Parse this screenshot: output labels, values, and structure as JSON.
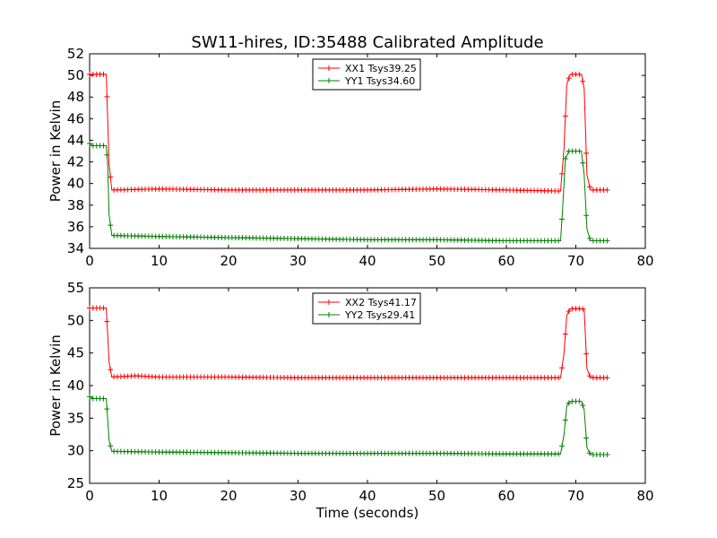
{
  "title": "SW11-hires, ID:35488 Calibrated Amplitude",
  "xlabel": "Time (seconds)",
  "chart_data": [
    {
      "type": "line",
      "ylabel": "Power in Kelvin",
      "xlim": [
        0,
        80
      ],
      "ylim": [
        34,
        52
      ],
      "xticks": [
        0,
        10,
        20,
        30,
        40,
        50,
        60,
        70,
        80
      ],
      "yticks": [
        34,
        36,
        38,
        40,
        42,
        44,
        46,
        48,
        50,
        52
      ],
      "legend_position": "top-center",
      "series": [
        {
          "name": "XX1 Tsys39.25",
          "color": "#ff0000",
          "points": [
            [
              0,
              50.1
            ],
            [
              2.4,
              50.1
            ],
            [
              2.8,
              41.8
            ],
            [
              3.2,
              39.4
            ],
            [
              10,
              39.5
            ],
            [
              20,
              39.4
            ],
            [
              30,
              39.4
            ],
            [
              40,
              39.4
            ],
            [
              50,
              39.5
            ],
            [
              60,
              39.4
            ],
            [
              67.8,
              39.3
            ],
            [
              68.3,
              43.3
            ],
            [
              68.7,
              49.2
            ],
            [
              69.2,
              50.1
            ],
            [
              70.8,
              50.1
            ],
            [
              71.2,
              48.8
            ],
            [
              71.6,
              40.8
            ],
            [
              72.1,
              39.4
            ],
            [
              74.5,
              39.4
            ]
          ]
        },
        {
          "name": "YY1 Tsys34.60",
          "color": "#008000",
          "points": [
            [
              0,
              43.7
            ],
            [
              0.4,
              43.5
            ],
            [
              2.4,
              43.5
            ],
            [
              2.6,
              41.8
            ],
            [
              2.8,
              37.1
            ],
            [
              3.2,
              35.2
            ],
            [
              10,
              35.1
            ],
            [
              20,
              35.0
            ],
            [
              30,
              34.9
            ],
            [
              40,
              34.8
            ],
            [
              50,
              34.8
            ],
            [
              60,
              34.7
            ],
            [
              67.8,
              34.7
            ],
            [
              68.1,
              37.7
            ],
            [
              68.5,
              42.3
            ],
            [
              69.0,
              43.0
            ],
            [
              70.8,
              43.0
            ],
            [
              71.2,
              40.8
            ],
            [
              71.6,
              35.8
            ],
            [
              72.1,
              34.7
            ],
            [
              74.5,
              34.7
            ]
          ]
        }
      ]
    },
    {
      "type": "line",
      "ylabel": "Power in Kelvin",
      "xlim": [
        0,
        80
      ],
      "ylim": [
        25,
        55
      ],
      "xticks": [
        0,
        10,
        20,
        30,
        40,
        50,
        60,
        70,
        80
      ],
      "yticks": [
        25,
        30,
        35,
        40,
        45,
        50,
        55
      ],
      "legend_position": "top-center",
      "series": [
        {
          "name": "XX2 Tsys41.17",
          "color": "#ff0000",
          "points": [
            [
              0,
              51.9
            ],
            [
              2.4,
              51.9
            ],
            [
              2.8,
              43.6
            ],
            [
              3.2,
              41.3
            ],
            [
              6.7,
              41.5
            ],
            [
              10,
              41.3
            ],
            [
              20,
              41.3
            ],
            [
              30,
              41.2
            ],
            [
              40,
              41.2
            ],
            [
              50,
              41.2
            ],
            [
              60,
              41.2
            ],
            [
              67.8,
              41.2
            ],
            [
              68.3,
              45.0
            ],
            [
              68.7,
              50.8
            ],
            [
              69.2,
              51.8
            ],
            [
              70.8,
              51.8
            ],
            [
              71.2,
              51.7
            ],
            [
              71.6,
              42.6
            ],
            [
              72.1,
              41.2
            ],
            [
              74.5,
              41.2
            ]
          ]
        },
        {
          "name": "YY2 Tsys29.41",
          "color": "#008000",
          "points": [
            [
              0,
              38.3
            ],
            [
              0.5,
              38.0
            ],
            [
              2.4,
              38.0
            ],
            [
              2.8,
              31.6
            ],
            [
              3.2,
              29.9
            ],
            [
              10,
              29.8
            ],
            [
              20,
              29.7
            ],
            [
              30,
              29.6
            ],
            [
              40,
              29.6
            ],
            [
              50,
              29.6
            ],
            [
              60,
              29.5
            ],
            [
              67.8,
              29.5
            ],
            [
              68.3,
              32.5
            ],
            [
              68.7,
              36.9
            ],
            [
              69.2,
              37.6
            ],
            [
              70.8,
              37.6
            ],
            [
              71.2,
              36.3
            ],
            [
              71.6,
              30.5
            ],
            [
              72.1,
              29.4
            ],
            [
              74.5,
              29.4
            ]
          ]
        }
      ]
    }
  ]
}
